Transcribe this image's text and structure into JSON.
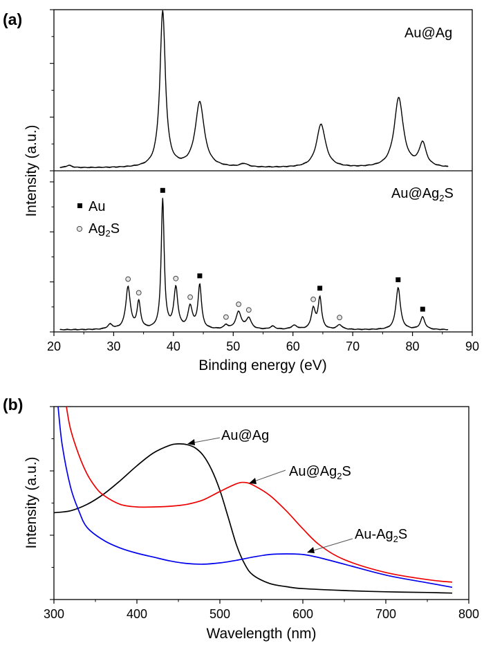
{
  "chart_data": [
    {
      "panel": "(a)",
      "type": "line",
      "xlabel": "Binding energy (eV)",
      "ylabel": "Intensity (a.u.)",
      "xlim": [
        20,
        90
      ],
      "xticks": [
        20,
        30,
        40,
        50,
        60,
        70,
        80,
        90
      ],
      "grid": false,
      "series": [
        {
          "name": "Au@Ag",
          "label_main": "Au@Ag",
          "label_sub": "",
          "color": "#000000",
          "peaks": [
            {
              "x": 22.5,
              "h": 0.013,
              "w": 0.6
            },
            {
              "x": 38.2,
              "h": 0.86,
              "w": 0.55
            },
            {
              "x": 44.4,
              "h": 0.36,
              "w": 0.9
            },
            {
              "x": 51.8,
              "h": 0.018,
              "w": 0.8
            },
            {
              "x": 64.7,
              "h": 0.24,
              "w": 0.9
            },
            {
              "x": 77.7,
              "h": 0.385,
              "w": 0.9
            },
            {
              "x": 81.7,
              "h": 0.13,
              "w": 0.7
            }
          ]
        },
        {
          "name": "Au@Ag2S",
          "label_main": "Au@Ag",
          "label_sub": "2",
          "label_tail": "S",
          "color": "#000000",
          "peaks": [
            {
              "x": 29.4,
              "h": 0.03,
              "w": 0.5
            },
            {
              "x": 32.4,
              "h": 0.27,
              "w": 0.45
            },
            {
              "x": 34.2,
              "h": 0.17,
              "w": 0.35
            },
            {
              "x": 38.2,
              "h": 0.83,
              "w": 0.3
            },
            {
              "x": 40.4,
              "h": 0.26,
              "w": 0.4
            },
            {
              "x": 42.8,
              "h": 0.14,
              "w": 0.45
            },
            {
              "x": 44.4,
              "h": 0.28,
              "w": 0.35
            },
            {
              "x": 48.8,
              "h": 0.025,
              "w": 0.4
            },
            {
              "x": 50.9,
              "h": 0.11,
              "w": 0.55
            },
            {
              "x": 52.6,
              "h": 0.07,
              "w": 0.5
            },
            {
              "x": 56.6,
              "h": 0.02,
              "w": 0.5
            },
            {
              "x": 60.2,
              "h": 0.025,
              "w": 0.6
            },
            {
              "x": 63.4,
              "h": 0.13,
              "w": 0.4
            },
            {
              "x": 64.5,
              "h": 0.2,
              "w": 0.35
            },
            {
              "x": 67.8,
              "h": 0.03,
              "w": 0.5
            },
            {
              "x": 77.6,
              "h": 0.27,
              "w": 0.45
            },
            {
              "x": 81.7,
              "h": 0.08,
              "w": 0.45
            }
          ]
        }
      ],
      "legend": {
        "placement": "upper-left of lower trace",
        "entries": [
          {
            "marker": "filled-square",
            "label_main": "Au",
            "label_sub": "",
            "label_tail": ""
          },
          {
            "marker": "open-circle",
            "label_main": "Ag",
            "label_sub": "2",
            "label_tail": "S"
          }
        ]
      },
      "markers": {
        "Au": [
          38.2,
          44.4,
          64.5,
          77.6,
          81.7
        ],
        "Ag2S": [
          32.4,
          34.2,
          40.4,
          42.8,
          48.8,
          50.9,
          52.6,
          63.4,
          67.8
        ]
      }
    },
    {
      "panel": "(b)",
      "type": "line",
      "xlabel": "Wavelength (nm)",
      "ylabel": "Intensity (a.u.)",
      "xlim": [
        300,
        800
      ],
      "ylim": [
        0,
        3
      ],
      "xticks": [
        300,
        400,
        500,
        600,
        700,
        800
      ],
      "grid": false,
      "series": [
        {
          "name": "Au@Ag",
          "label_main": "Au@Ag",
          "label_sub": "",
          "label_tail": "",
          "color": "#000000",
          "x": [
            300,
            320,
            340,
            360,
            380,
            400,
            420,
            440,
            450,
            460,
            470,
            480,
            490,
            500,
            510,
            520,
            530,
            540,
            560,
            580,
            600,
            650,
            700,
            750,
            780
          ],
          "y": [
            1.35,
            1.38,
            1.48,
            1.64,
            1.85,
            2.08,
            2.28,
            2.4,
            2.42,
            2.41,
            2.36,
            2.24,
            2.02,
            1.7,
            1.28,
            0.85,
            0.55,
            0.38,
            0.25,
            0.2,
            0.17,
            0.14,
            0.12,
            0.11,
            0.1
          ]
        },
        {
          "name": "Au@Ag2S",
          "label_main": "Au@Ag",
          "label_sub": "2",
          "label_tail": "S",
          "color": "#ee0000",
          "x": [
            315,
            320,
            330,
            340,
            350,
            360,
            380,
            400,
            420,
            440,
            460,
            480,
            500,
            520,
            530,
            540,
            560,
            580,
            600,
            620,
            650,
            700,
            750,
            780
          ],
          "y": [
            3.0,
            2.65,
            2.25,
            1.95,
            1.75,
            1.62,
            1.48,
            1.44,
            1.44,
            1.45,
            1.48,
            1.55,
            1.68,
            1.8,
            1.82,
            1.78,
            1.62,
            1.38,
            1.1,
            0.85,
            0.62,
            0.42,
            0.31,
            0.27
          ]
        },
        {
          "name": "Au-Ag2S",
          "label_main": "Au-Ag",
          "label_sub": "2",
          "label_tail": "S",
          "color": "#0000ee",
          "x": [
            305,
            310,
            320,
            330,
            340,
            360,
            380,
            400,
            420,
            440,
            460,
            480,
            500,
            520,
            540,
            560,
            580,
            600,
            620,
            650,
            700,
            750,
            780
          ],
          "y": [
            3.0,
            2.4,
            1.75,
            1.38,
            1.12,
            0.92,
            0.8,
            0.72,
            0.66,
            0.6,
            0.56,
            0.55,
            0.57,
            0.61,
            0.66,
            0.7,
            0.71,
            0.7,
            0.65,
            0.55,
            0.38,
            0.26,
            0.19
          ]
        }
      ]
    }
  ]
}
